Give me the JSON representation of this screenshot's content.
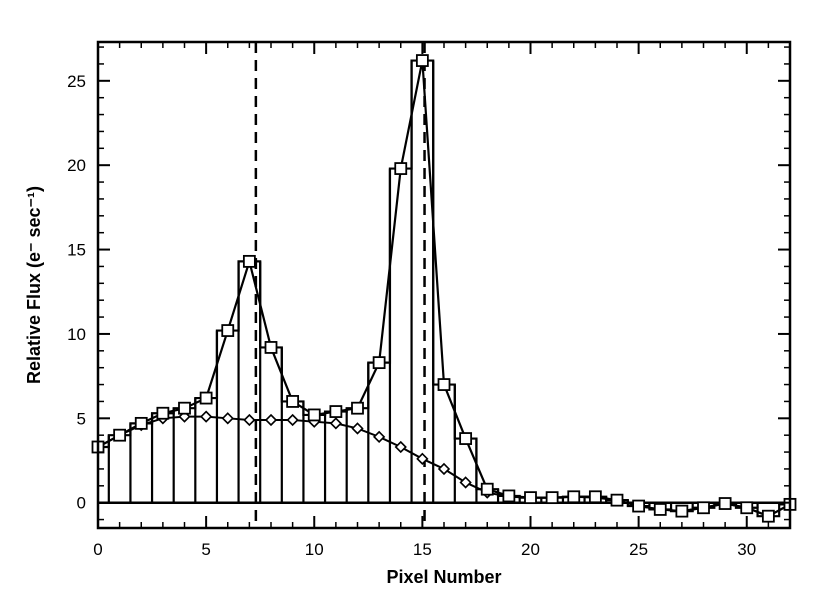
{
  "chart_data": {
    "type": "line",
    "title": "",
    "xlabel": "Pixel Number",
    "ylabel": "Relative Flux (e⁻ sec⁻¹)",
    "xlim": [
      0,
      32
    ],
    "ylim": [
      -1.5,
      27.3
    ],
    "xticks": [
      0,
      5,
      10,
      15,
      20,
      25,
      30
    ],
    "yticks": [
      0,
      5,
      10,
      15,
      20,
      25
    ],
    "grid": false,
    "legend": "none",
    "reference_lines": {
      "horizontal_y": 0,
      "vertical_dashed_x": [
        7.3,
        15.1
      ]
    },
    "series": [
      {
        "style": "histogram with square markers",
        "x": [
          0,
          1,
          2,
          3,
          4,
          5,
          6,
          7,
          8,
          9,
          10,
          11,
          12,
          13,
          14,
          15,
          16,
          17,
          18,
          19,
          20,
          21,
          22,
          23,
          24,
          25,
          26,
          27,
          28,
          29,
          30,
          31,
          32
        ],
        "values": [
          3.3,
          4.0,
          4.7,
          5.3,
          5.6,
          6.2,
          10.2,
          14.3,
          9.2,
          6.0,
          5.2,
          5.4,
          5.6,
          8.3,
          19.8,
          26.2,
          7.0,
          3.8,
          0.8,
          0.4,
          0.3,
          0.3,
          0.35,
          0.35,
          0.15,
          -0.2,
          -0.4,
          -0.5,
          -0.3,
          -0.05,
          -0.3,
          -0.8,
          -0.1
        ]
      },
      {
        "style": "line with diamond markers",
        "x": [
          0,
          1,
          2,
          3,
          4,
          5,
          6,
          7,
          8,
          9,
          10,
          11,
          12,
          13,
          14,
          15,
          16,
          17,
          18,
          19,
          20,
          21,
          22,
          23,
          24,
          25,
          26,
          27,
          28,
          29,
          30,
          31,
          32
        ],
        "values": [
          3.3,
          4.0,
          4.6,
          5.0,
          5.1,
          5.1,
          5.0,
          4.9,
          4.9,
          4.9,
          4.8,
          4.7,
          4.4,
          3.9,
          3.3,
          2.6,
          2.0,
          1.2,
          0.6,
          0.35,
          0.3,
          0.3,
          0.35,
          0.3,
          0.15,
          -0.2,
          -0.4,
          -0.5,
          -0.3,
          -0.05,
          -0.3,
          -0.8,
          -0.1
        ]
      }
    ]
  }
}
